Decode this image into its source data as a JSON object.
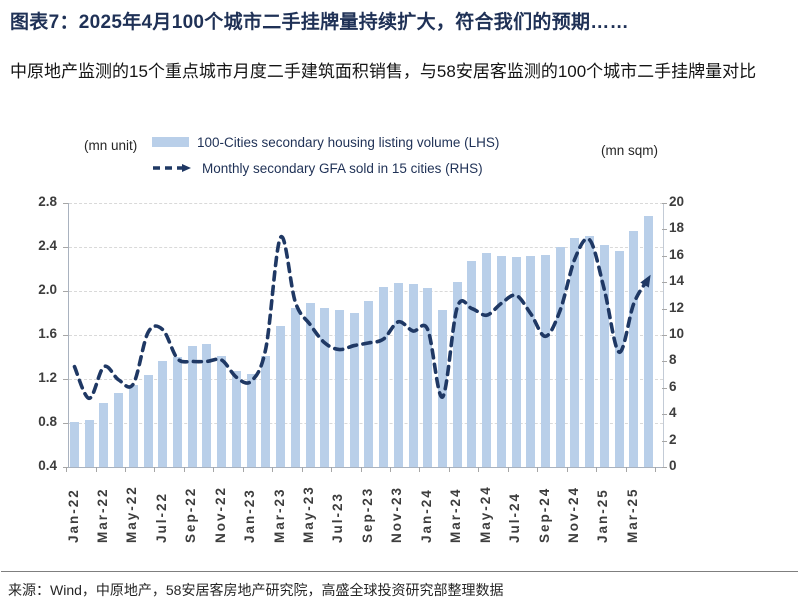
{
  "figure": {
    "title": "图表7：2025年4月100个城市二手挂牌量持续扩大，符合我们的预期……",
    "subtitle": "中原地产监测的15个重点城市月度二手建筑面积销售，与58安居客监测的100个城市二手挂牌量对比",
    "source": "来源：Wind，中原地产，58安居客房地产研究院，高盛全球投资研究部整理数据"
  },
  "chart_data": {
    "type": "bar+line",
    "title": "",
    "grid": "horizontal-dashed",
    "legend_position": "top-center",
    "categories": [
      "Jan-22",
      "Feb-22",
      "Mar-22",
      "Apr-22",
      "May-22",
      "Jun-22",
      "Jul-22",
      "Aug-22",
      "Sep-22",
      "Oct-22",
      "Nov-22",
      "Dec-22",
      "Jan-23",
      "Feb-23",
      "Mar-23",
      "Apr-23",
      "May-23",
      "Jun-23",
      "Jul-23",
      "Aug-23",
      "Sep-23",
      "Oct-23",
      "Nov-23",
      "Dec-23",
      "Jan-24",
      "Feb-24",
      "Mar-24",
      "Apr-24",
      "May-24",
      "Jun-24",
      "Jul-24",
      "Aug-24",
      "Sep-24",
      "Oct-24",
      "Nov-24",
      "Dec-24",
      "Jan-25",
      "Feb-25",
      "Mar-25",
      "Apr-25"
    ],
    "x_tick_labels": [
      "Jan-22",
      "Mar-22",
      "May-22",
      "Jul-22",
      "Sep-22",
      "Nov-22",
      "Jan-23",
      "Mar-23",
      "May-23",
      "Jul-23",
      "Sep-23",
      "Nov-23",
      "Jan-24",
      "Mar-24",
      "May-24",
      "Jul-24",
      "Sep-24",
      "Nov-24",
      "Jan-25",
      "Mar-25"
    ],
    "series": [
      {
        "name": "100-Cities secondary housing listing volume (LHS)",
        "type": "bar",
        "axis": "left",
        "color": "#b9cfe9",
        "values": [
          0.81,
          0.83,
          0.98,
          1.07,
          1.15,
          1.24,
          1.36,
          1.4,
          1.5,
          1.52,
          1.41,
          1.27,
          1.25,
          1.41,
          1.68,
          1.85,
          1.89,
          1.85,
          1.83,
          1.8,
          1.91,
          2.04,
          2.07,
          2.06,
          2.03,
          1.83,
          2.08,
          2.27,
          2.35,
          2.32,
          2.31,
          2.32,
          2.33,
          2.4,
          2.48,
          2.5,
          2.42,
          2.36,
          2.55,
          2.68
        ]
      },
      {
        "name": "Monthly secondary GFA sold in 15 cities (RHS)",
        "type": "dashed-line-arrow",
        "axis": "right",
        "color": "#1f3864",
        "values": [
          7.6,
          5.2,
          7.6,
          6.6,
          6.3,
          10.2,
          10.4,
          8.2,
          8.0,
          8.0,
          8.1,
          6.8,
          6.5,
          9.0,
          17.4,
          12.5,
          10.8,
          9.4,
          8.9,
          9.2,
          9.4,
          9.7,
          11.0,
          10.3,
          10.4,
          5.3,
          12.1,
          12.0,
          11.5,
          12.4,
          13.0,
          11.6,
          9.9,
          11.9,
          15.8,
          17.2,
          13.4,
          8.7,
          12.4,
          14.3
        ]
      }
    ],
    "left_axis": {
      "unit": "(mn unit)",
      "min": 0.4,
      "max": 2.8,
      "step": 0.4,
      "ticks": [
        "2.8",
        "2.4",
        "2.0",
        "1.6",
        "1.2",
        "0.8",
        "0.4"
      ]
    },
    "right_axis": {
      "unit": "(mn sqm)",
      "min": 0,
      "max": 20,
      "step": 2,
      "ticks": [
        "20",
        "18",
        "16",
        "14",
        "12",
        "10",
        "8",
        "6",
        "4",
        "2",
        "0"
      ]
    },
    "colors": {
      "gridline": "#d9d9d9",
      "axis": "#a6a6a6",
      "tick_label": "#3d3d3d"
    }
  }
}
